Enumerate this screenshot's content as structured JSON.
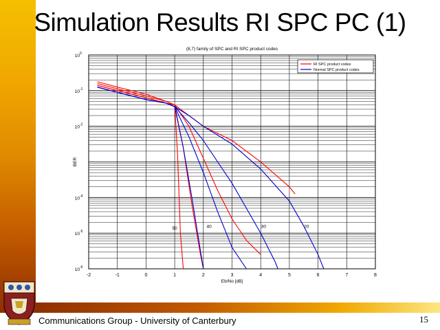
{
  "slide": {
    "title": "Simulation Results RI SPC PC (1)",
    "footer": "Communications Group - University of Canterbury",
    "page_number": "15"
  },
  "colors": {
    "sidebar_top": "#f5c000",
    "sidebar_bottom": "#8e2f00",
    "ri_series": "#ff0000",
    "normal_series": "#0000cc"
  },
  "chart_data": {
    "type": "line",
    "title": "(8,7) family of SPC and RI SPC product codes",
    "xlabel": "Eb/No [dB]",
    "ylabel": "BER",
    "xlim": [
      -2,
      8
    ],
    "ylim_log10": [
      -6,
      0
    ],
    "y_scale": "log",
    "grid": true,
    "legend_position": "top-right",
    "xticks": [
      "-2",
      "-1",
      "0",
      "1",
      "2",
      "3",
      "4",
      "5",
      "6",
      "7",
      "8"
    ],
    "yticks": [
      {
        "base": "10",
        "exp": "0",
        "value": 0
      },
      {
        "base": "10",
        "exp": "-1",
        "value": -1
      },
      {
        "base": "10",
        "exp": "-2",
        "value": -2
      },
      {
        "base": "10",
        "exp": "-4",
        "value": -4
      },
      {
        "base": "10",
        "exp": "-5",
        "value": -5
      },
      {
        "base": "10",
        "exp": "-6",
        "value": -6
      }
    ],
    "legend": [
      {
        "label": "RI SPC product codes",
        "color": "#ff0000"
      },
      {
        "label": "Normal SPC product codes",
        "color": "#0000cc"
      }
    ],
    "annotations": [
      {
        "text": "50",
        "x": 1.0,
        "y_log10": -4.9
      },
      {
        "text": "40",
        "x": 2.2,
        "y_log10": -4.85
      },
      {
        "text": "30",
        "x": 4.1,
        "y_log10": -4.85
      },
      {
        "text": "20",
        "x": 5.6,
        "y_log10": -4.85
      }
    ],
    "series": [
      {
        "group": "RI SPC",
        "color": "#ff0000",
        "x": [
          -1.7,
          -1.0,
          0.0,
          0.7,
          1.0,
          1.1,
          1.2,
          1.3
        ],
        "y_log10": [
          -0.75,
          -0.9,
          -1.1,
          -1.3,
          -1.4,
          -2.8,
          -5.0,
          -6.0
        ]
      },
      {
        "group": "RI SPC",
        "color": "#ff0000",
        "x": [
          -1.7,
          -1.0,
          0.0,
          0.7,
          1.0,
          1.3,
          1.6,
          1.9,
          2.0
        ],
        "y_log10": [
          -0.8,
          -0.95,
          -1.15,
          -1.3,
          -1.4,
          -2.6,
          -4.2,
          -5.6,
          -6.0
        ]
      },
      {
        "group": "RI SPC",
        "color": "#ff0000",
        "x": [
          -1.7,
          -1.0,
          0.0,
          0.7,
          1.0,
          1.5,
          2.0,
          2.5,
          3.0,
          3.5,
          4.0
        ],
        "y_log10": [
          -0.85,
          -1.0,
          -1.2,
          -1.35,
          -1.4,
          -2.0,
          -2.9,
          -3.8,
          -4.6,
          -5.2,
          -5.6
        ]
      },
      {
        "group": "RI SPC",
        "color": "#ff0000",
        "x": [
          -1.7,
          -1.0,
          0.0,
          0.7,
          1.0,
          1.5,
          2.0,
          3.0,
          4.0,
          5.0,
          5.2
        ],
        "y_log10": [
          -0.85,
          -1.0,
          -1.2,
          -1.35,
          -1.4,
          -1.7,
          -2.0,
          -2.4,
          -3.0,
          -3.7,
          -3.9
        ]
      },
      {
        "group": "Normal SPC",
        "color": "#0000cc",
        "x": [
          -1.7,
          -1.0,
          0.0,
          0.7,
          1.0,
          1.3,
          1.6,
          1.9,
          2.0
        ],
        "y_log10": [
          -0.9,
          -1.05,
          -1.25,
          -1.35,
          -1.45,
          -2.6,
          -4.0,
          -5.5,
          -6.0
        ]
      },
      {
        "group": "Normal SPC",
        "color": "#0000cc",
        "x": [
          -1.7,
          -1.0,
          0.0,
          0.7,
          1.0,
          1.5,
          2.0,
          2.5,
          3.0,
          3.5
        ],
        "y_log10": [
          -0.9,
          -1.05,
          -1.25,
          -1.35,
          -1.45,
          -2.3,
          -3.3,
          -4.4,
          -5.4,
          -6.0
        ]
      },
      {
        "group": "Normal SPC",
        "color": "#0000cc",
        "x": [
          -1.7,
          -1.0,
          0.0,
          0.7,
          1.0,
          1.5,
          2.0,
          2.5,
          3.0,
          3.5,
          4.0,
          4.5,
          4.6
        ],
        "y_log10": [
          -0.9,
          -1.05,
          -1.25,
          -1.35,
          -1.45,
          -1.9,
          -2.4,
          -3.0,
          -3.6,
          -4.3,
          -5.0,
          -5.8,
          -6.0
        ]
      },
      {
        "group": "Normal SPC",
        "color": "#0000cc",
        "x": [
          -1.7,
          -1.0,
          0.0,
          0.7,
          1.0,
          1.5,
          2.0,
          3.0,
          4.0,
          5.0,
          5.5,
          6.0,
          6.2
        ],
        "y_log10": [
          -0.9,
          -1.05,
          -1.25,
          -1.35,
          -1.45,
          -1.7,
          -2.0,
          -2.5,
          -3.2,
          -4.1,
          -4.8,
          -5.6,
          -6.0
        ]
      }
    ]
  }
}
